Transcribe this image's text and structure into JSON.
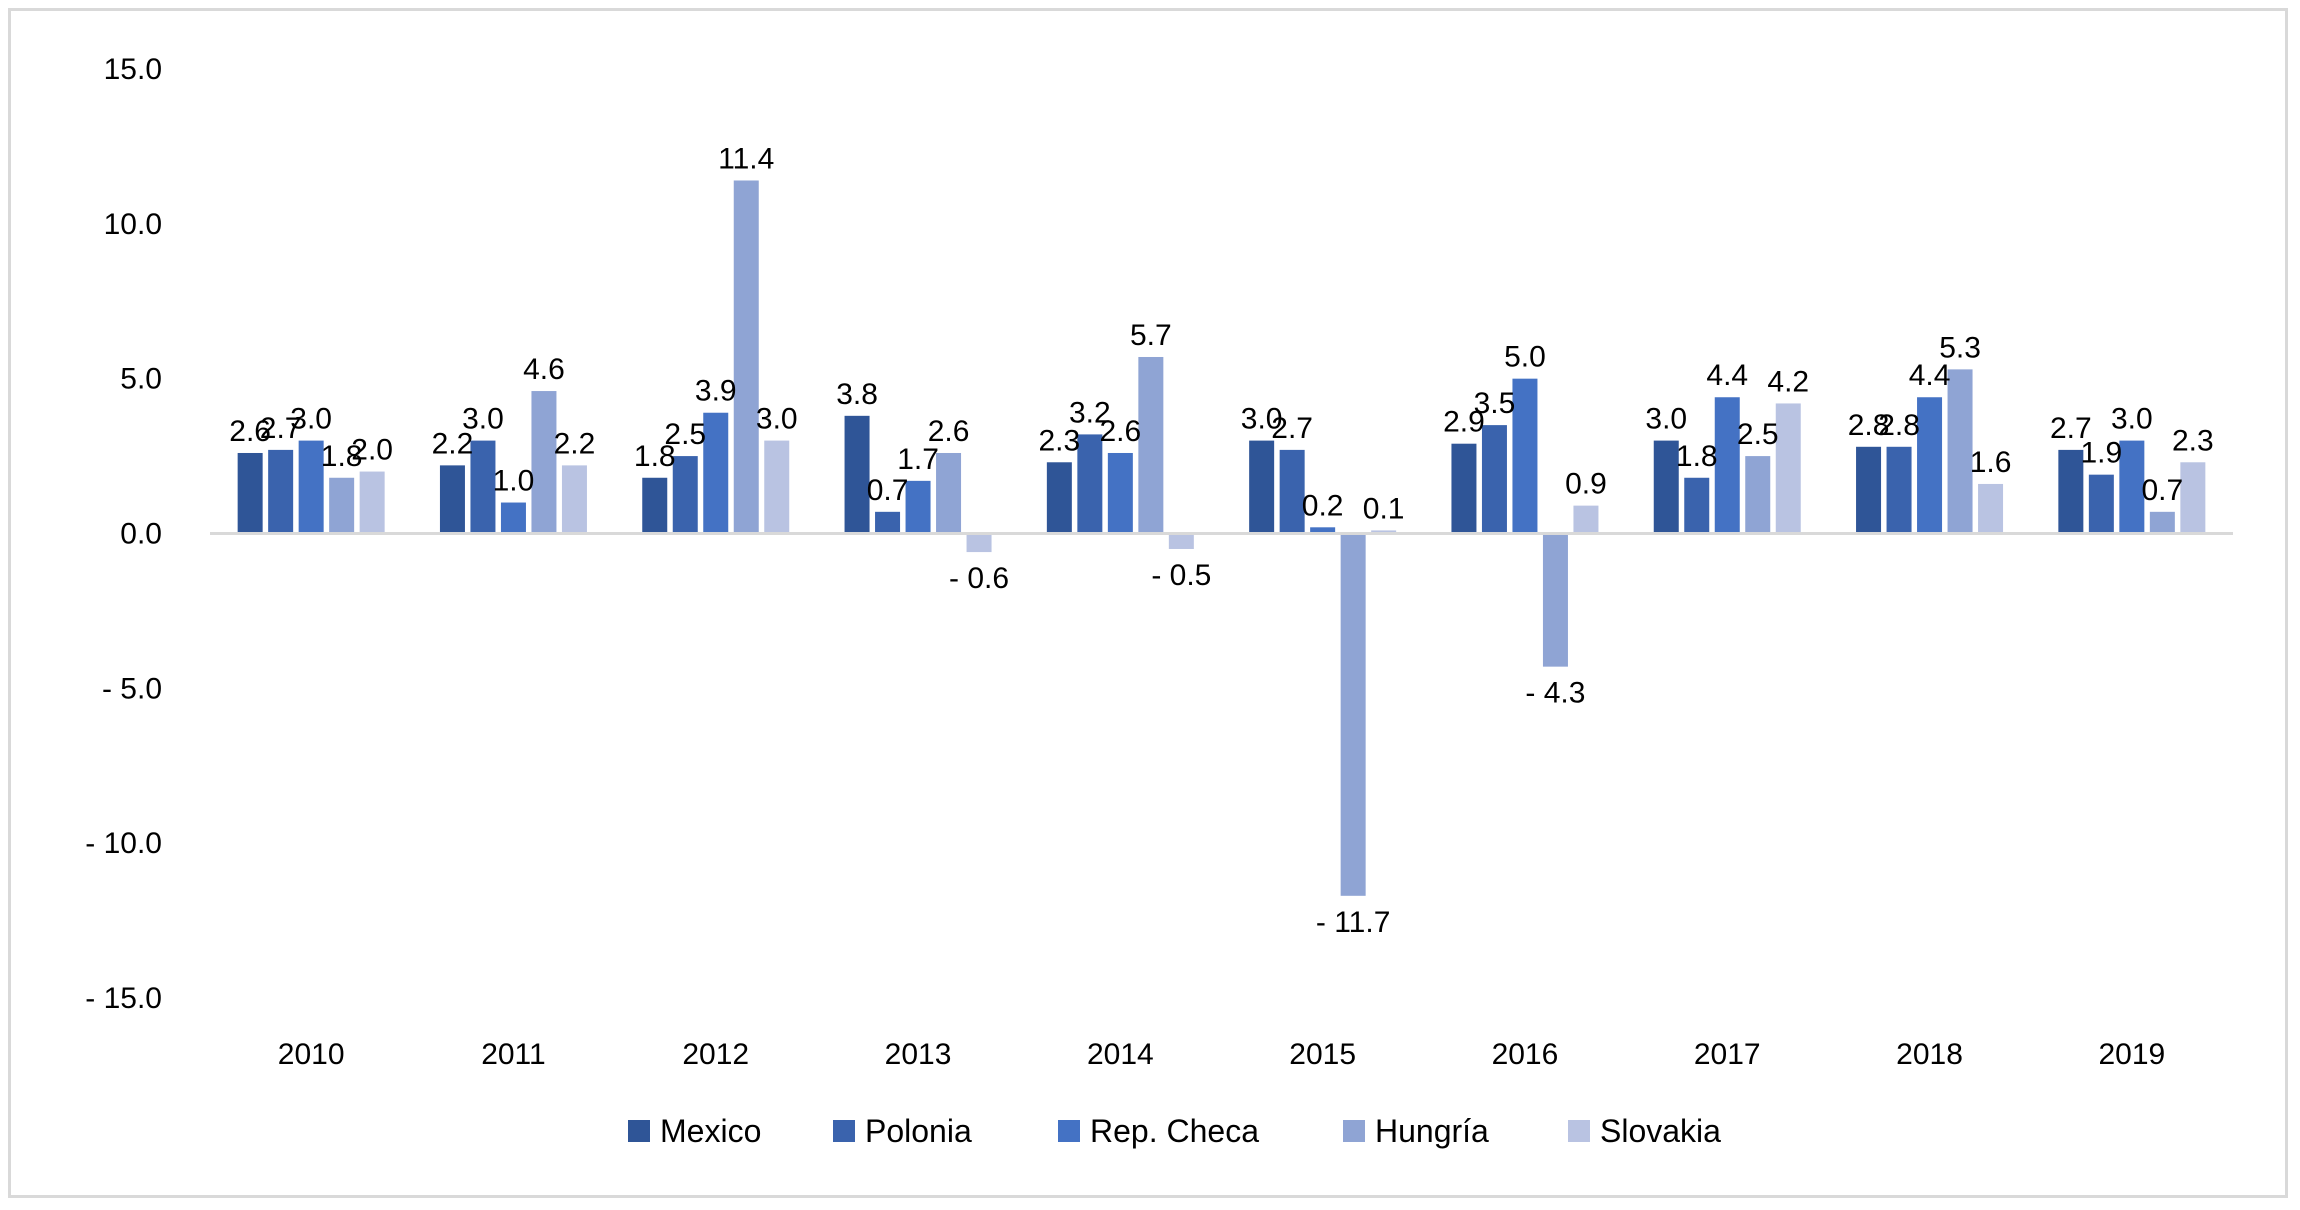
{
  "chart_data": {
    "type": "bar",
    "title": "",
    "xlabel": "",
    "ylabel": "",
    "ylim": [
      -15,
      15
    ],
    "yticks": [
      15,
      10,
      5,
      0,
      -5,
      -10,
      -15
    ],
    "ytick_labels": [
      "15.0",
      "10.0",
      "5.0",
      "0.0",
      "- 5.0",
      "- 10.0",
      "- 15.0"
    ],
    "grid": false,
    "legend_position": "bottom",
    "categories": [
      "2010",
      "2011",
      "2012",
      "2013",
      "2014",
      "2015",
      "2016",
      "2017",
      "2018",
      "2019"
    ],
    "series": [
      {
        "name": "Mexico",
        "color": "#2F5597",
        "values": [
          2.6,
          2.2,
          1.8,
          3.8,
          2.3,
          3.0,
          2.9,
          3.0,
          2.8,
          2.7
        ],
        "labels": [
          "2.6",
          "2.2",
          "1.8",
          "3.8",
          "2.3",
          "3.0",
          "2.9",
          "3.0",
          "2.8",
          "2.7"
        ]
      },
      {
        "name": "Polonia",
        "color": "#3A63AD",
        "values": [
          2.7,
          3.0,
          2.5,
          0.7,
          3.2,
          2.7,
          3.5,
          1.8,
          2.8,
          1.9
        ],
        "labels": [
          "2.7",
          "3.0",
          "2.5",
          "0.7",
          "3.2",
          "2.7",
          "3.5",
          "1.8",
          "2.8",
          "1.9"
        ]
      },
      {
        "name": "Rep. Checa",
        "color": "#4472C4",
        "values": [
          3.0,
          1.0,
          3.9,
          1.7,
          2.6,
          0.2,
          5.0,
          4.4,
          4.4,
          3.0
        ],
        "labels": [
          "3.0",
          "1.0",
          "3.9",
          "1.7",
          "2.6",
          "0.2",
          "5.0",
          "4.4",
          "4.4",
          "3.0"
        ]
      },
      {
        "name": "Hungría",
        "color": "#8FA4D4",
        "values": [
          1.8,
          4.6,
          11.4,
          2.6,
          5.7,
          -11.7,
          -4.3,
          2.5,
          5.3,
          0.7
        ],
        "labels": [
          "1.8",
          "4.6",
          "11.4",
          "2.6",
          "5.7",
          "- 11.7",
          "- 4.3",
          "2.5",
          "5.3",
          "0.7"
        ]
      },
      {
        "name": "Slovakia",
        "color": "#B9C3E2",
        "values": [
          2.0,
          2.2,
          3.0,
          -0.6,
          -0.5,
          0.1,
          0.9,
          4.2,
          1.6,
          2.3
        ],
        "labels": [
          "2.0",
          "2.2",
          "3.0",
          "- 0.6",
          "- 0.5",
          "0.1",
          "0.9",
          "4.2",
          "1.6",
          "2.3"
        ]
      }
    ]
  }
}
